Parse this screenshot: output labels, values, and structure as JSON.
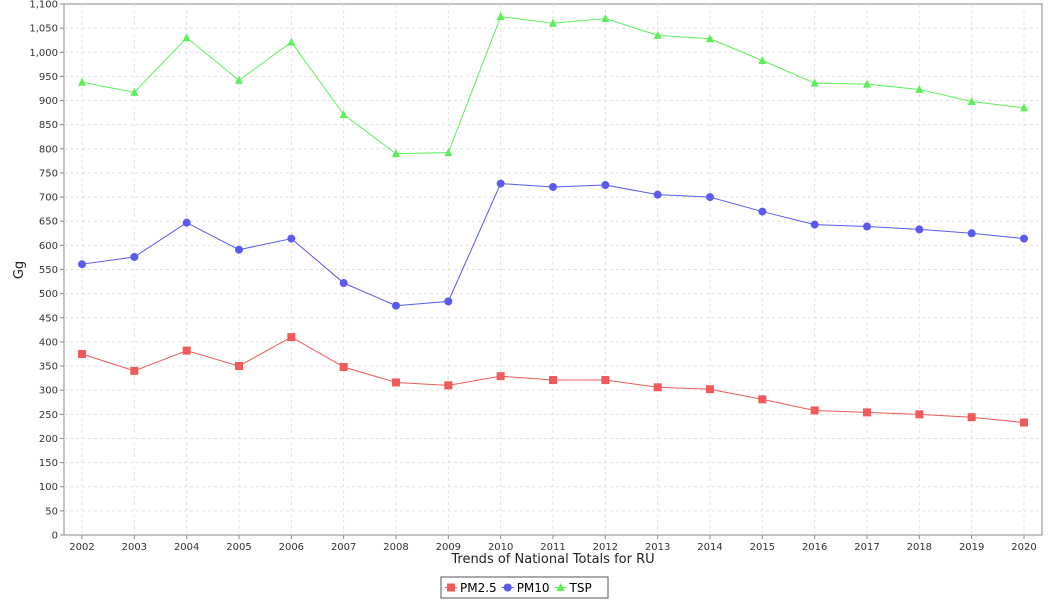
{
  "chart_data": {
    "type": "line",
    "xlabel": "Trends of National Totals for RU",
    "ylabel": "Gg",
    "ylim": [
      0,
      1100
    ],
    "ytick_step": 50,
    "grid": true,
    "legend_position": "bottom-center",
    "categories": [
      "2002",
      "2003",
      "2004",
      "2005",
      "2006",
      "2007",
      "2008",
      "2009",
      "2010",
      "2011",
      "2012",
      "2013",
      "2014",
      "2015",
      "2016",
      "2017",
      "2018",
      "2019",
      "2020"
    ],
    "series": [
      {
        "name": "PM2.5",
        "color": "#f05a5a",
        "marker": "square",
        "values": [
          375,
          340,
          382,
          350,
          410,
          348,
          316,
          310,
          329,
          321,
          321,
          306,
          302,
          281,
          258,
          254,
          250,
          244,
          233
        ]
      },
      {
        "name": "PM10",
        "color": "#5a5af0",
        "marker": "circle",
        "values": [
          561,
          576,
          647,
          591,
          614,
          522,
          475,
          484,
          728,
          721,
          725,
          705,
          700,
          670,
          643,
          639,
          633,
          625,
          614
        ]
      },
      {
        "name": "TSP",
        "color": "#5af05a",
        "marker": "triangle",
        "values": [
          938,
          917,
          1030,
          942,
          1021,
          871,
          790,
          792,
          1074,
          1060,
          1070,
          1035,
          1028,
          983,
          936,
          934,
          923,
          898,
          885
        ]
      }
    ]
  }
}
